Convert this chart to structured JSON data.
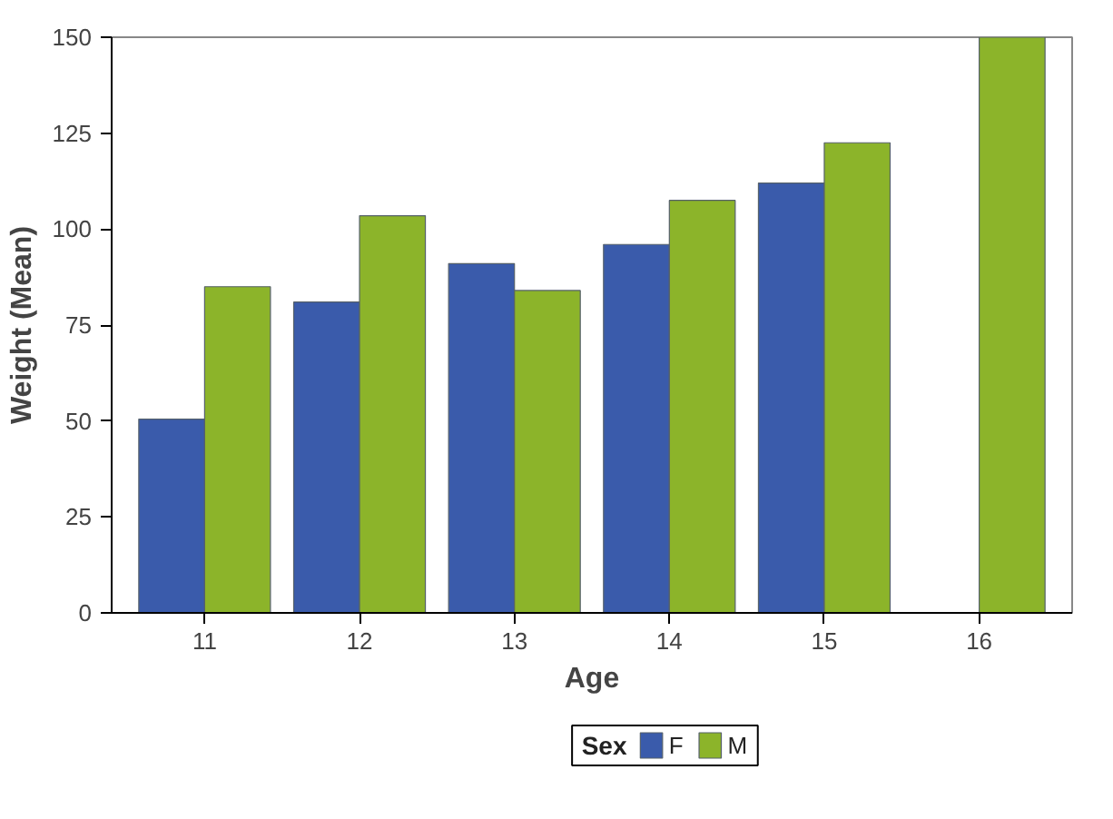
{
  "chart_data": {
    "type": "bar",
    "xlabel": "Age",
    "ylabel": "Weight (Mean)",
    "legend_title": "Sex",
    "categories": [
      "11",
      "12",
      "13",
      "14",
      "15",
      "16"
    ],
    "series": [
      {
        "name": "F",
        "color": "#3a5bab",
        "values": [
          50.5,
          81,
          91,
          96,
          112,
          null
        ]
      },
      {
        "name": "M",
        "color": "#8cb42a",
        "values": [
          85.0,
          103.5,
          84.0,
          107.5,
          122.5,
          150.0
        ]
      }
    ],
    "ylim": [
      0,
      150
    ],
    "yticks": [
      0,
      25,
      50,
      75,
      100,
      125,
      150
    ],
    "grid": false,
    "legend": "bottom"
  }
}
